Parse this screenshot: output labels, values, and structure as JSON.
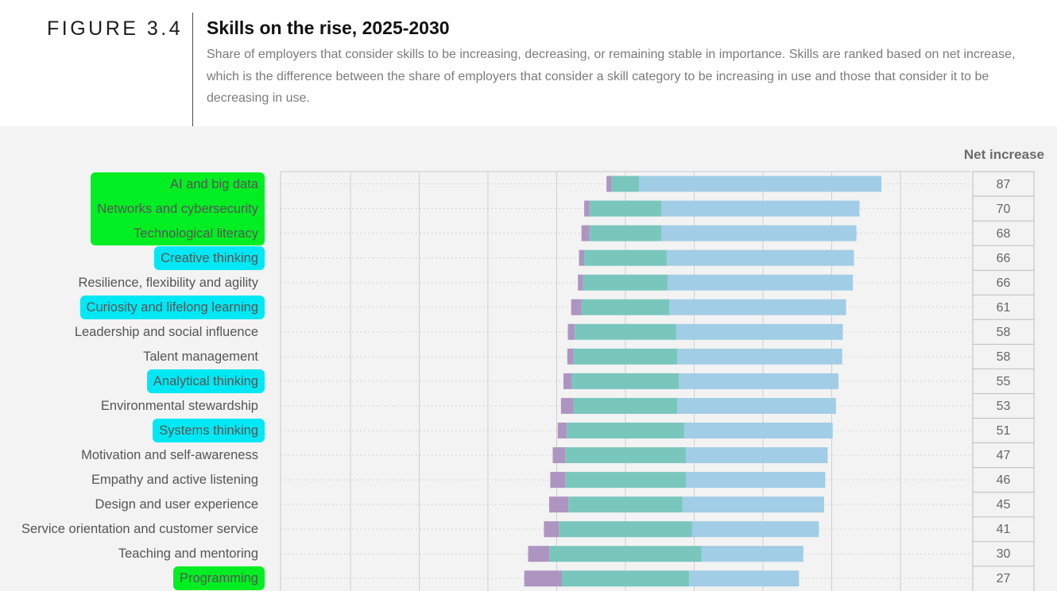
{
  "header": {
    "figure_label": "FIGURE 3.4",
    "title": "Skills on the rise, 2025-2030",
    "subtitle": "Share of employers that consider skills to be increasing, decreasing, or remaining stable in importance. Skills are ranked based on net increase, which is the difference between the share of employers that consider a skill category to be increasing in use and those that consider it to be decreasing in use."
  },
  "net_increase_label": "Net increase",
  "colors": {
    "decreasing": "#ae94c0",
    "stable": "#79c6bd",
    "increasing": "#a2cde6",
    "highlight_green": "#00ee22",
    "highlight_cyan": "#00e8f3"
  },
  "chart_data": {
    "type": "bar",
    "orientation": "horizontal",
    "stacked": true,
    "title": "Skills on the rise, 2025-2030",
    "xlim": [
      -100,
      100
    ],
    "grid": true,
    "categories": [
      "AI and big data",
      "Networks and cybersecurity",
      "Technological literacy",
      "Creative thinking",
      "Resilience, flexibility and agility",
      "Curiosity and lifelong learning",
      "Leadership and social influence",
      "Talent management",
      "Analytical thinking",
      "Environmental stewardship",
      "Systems thinking",
      "Motivation and self-awareness",
      "Empathy and active listening",
      "Design and user experience",
      "Service orientation and customer service",
      "Teaching and mentoring",
      "Programming"
    ],
    "highlights": [
      "green",
      "green",
      "green",
      "cyan",
      "none",
      "cyan",
      "none",
      "none",
      "cyan",
      "none",
      "cyan",
      "none",
      "none",
      "none",
      "none",
      "none",
      "green"
    ],
    "series": [
      {
        "key": "decreasing",
        "values": [
          1.9,
          1.9,
          2.9,
          1.9,
          1.9,
          3.8,
          2.5,
          2.3,
          3.1,
          4.6,
          3.3,
          4.5,
          5.4,
          7.0,
          5.4,
          7.7,
          13.7
        ]
      },
      {
        "key": "stable",
        "values": [
          10.0,
          26.2,
          26.2,
          30.0,
          30.8,
          31.9,
          36.9,
          37.7,
          38.9,
          37.7,
          42.7,
          43.9,
          43.9,
          41.5,
          48.5,
          55.4,
          46.2
        ]
      },
      {
        "key": "increasing",
        "values": [
          88.1,
          72.0,
          70.9,
          68.1,
          67.3,
          64.3,
          60.6,
          60.0,
          58.0,
          57.7,
          54.0,
          51.6,
          50.7,
          51.5,
          46.1,
          37.0,
          40.0
        ]
      }
    ],
    "net_increase": [
      87,
      70,
      68,
      66,
      66,
      61,
      58,
      58,
      55,
      53,
      51,
      47,
      46,
      45,
      41,
      30,
      27
    ]
  }
}
